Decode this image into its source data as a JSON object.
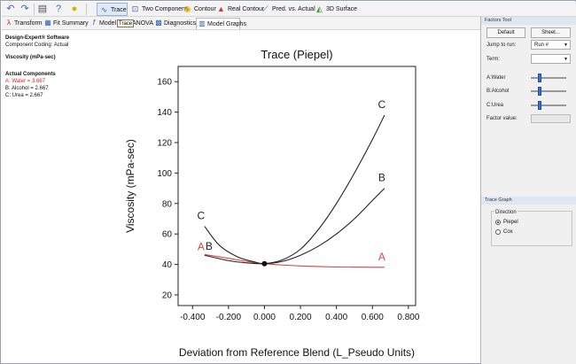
{
  "toolbar": {
    "undo_icon": "undo-icon",
    "redo_icon": "redo-icon",
    "print_icon": "print-icon",
    "help_icon": "help-icon",
    "tip_icon": "lightbulb-icon",
    "buttons": [
      {
        "label": "Trace",
        "icon": "trace-icon",
        "active": true
      },
      {
        "label": "Two Component",
        "icon": "two-component-icon"
      },
      {
        "label": "Contour",
        "icon": "contour-icon"
      },
      {
        "label": "Real Contour",
        "icon": "real-contour-icon"
      },
      {
        "label": "Pred. vs. Actual",
        "icon": "pred-vs-actual-icon"
      },
      {
        "label": "3D Surface",
        "icon": "surface-3d-icon"
      }
    ]
  },
  "tabs": [
    {
      "label": "Transform",
      "icon": "transform-icon"
    },
    {
      "label": "Fit Summary",
      "icon": "fit-summary-icon"
    },
    {
      "label": "Model",
      "icon": "model-icon"
    },
    {
      "label": "ANOVA",
      "icon": "anova-icon"
    },
    {
      "label": "Diagnostics",
      "icon": "diagnostics-icon"
    },
    {
      "label": "Model Graphs",
      "icon": "model-graphs-icon",
      "active": true
    }
  ],
  "tooltip": "Trace",
  "info": {
    "software": "Design-Expert® Software",
    "coding": "Component Coding: Actual",
    "response": "Viscosity (mPa-sec)",
    "components_title": "Actual Components",
    "components": [
      {
        "text": "A: Water = 3.667",
        "color": "#e02020"
      },
      {
        "text": "B: Alcohol = 2.667",
        "color": "#111111"
      },
      {
        "text": "C: Urea = 2.667",
        "color": "#111111"
      }
    ]
  },
  "factors_tool": {
    "header": "Factors Tool",
    "default_label": "Default",
    "sheet_label": "Sheet...",
    "jump_label": "Jump to run:",
    "jump_value": "Run #",
    "term_label": "Term:",
    "term_value": "",
    "factors": [
      {
        "label": "A:Water",
        "level": 0.22
      },
      {
        "label": "B:Alcohol",
        "level": 0.22
      },
      {
        "label": "C:Urea",
        "level": 0.22
      }
    ],
    "factor_value_label": "Factor value:"
  },
  "trace_graph": {
    "header": "Trace Graph",
    "direction_label": "Direction",
    "options": [
      {
        "label": "Piepel",
        "selected": true
      },
      {
        "label": "Cox",
        "selected": false
      }
    ]
  },
  "chart_data": {
    "type": "line",
    "title": "Trace (Piepel)",
    "xlabel": "Deviation from Reference Blend (L_Pseudo Units)",
    "ylabel": "Viscosity (mPa-sec)",
    "xlim": [
      -0.48,
      0.84
    ],
    "ylim": [
      13,
      170
    ],
    "xticks": [
      "-0.400",
      "-0.200",
      "0.000",
      "0.200",
      "0.400",
      "0.600",
      "0.800"
    ],
    "xtick_values": [
      -0.4,
      -0.2,
      0.0,
      0.2,
      0.4,
      0.6,
      0.8
    ],
    "yticks": [
      "20",
      "40",
      "60",
      "80",
      "100",
      "120",
      "140",
      "160"
    ],
    "ytick_values": [
      20,
      40,
      60,
      80,
      100,
      120,
      140,
      160
    ],
    "reference_point": {
      "x": 0.0,
      "y": 40.5
    },
    "series": [
      {
        "name": "A",
        "color": "#e34040",
        "x": [
          -0.333,
          -0.2,
          -0.1,
          0.0,
          0.1,
          0.2,
          0.3,
          0.4,
          0.5,
          0.6,
          0.667
        ],
        "y": [
          46.5,
          44.0,
          42.0,
          40.5,
          39.6,
          39.0,
          38.6,
          38.3,
          38.2,
          38.1,
          38.1
        ]
      },
      {
        "name": "B",
        "color": "#222222",
        "x": [
          -0.333,
          -0.2,
          -0.1,
          0.0,
          0.1,
          0.2,
          0.3,
          0.4,
          0.5,
          0.6,
          0.667
        ],
        "y": [
          46.0,
          42.5,
          41.0,
          40.5,
          42.0,
          46.0,
          52.0,
          60.0,
          70.0,
          82.0,
          90.0
        ]
      },
      {
        "name": "C",
        "color": "#222222",
        "x": [
          -0.333,
          -0.25,
          -0.15,
          -0.05,
          0.0,
          0.1,
          0.2,
          0.3,
          0.4,
          0.5,
          0.6,
          0.667
        ],
        "y": [
          65.0,
          52.5,
          45.0,
          41.5,
          40.5,
          43.0,
          50.0,
          63.0,
          80.0,
          100.0,
          122.0,
          138.0
        ]
      }
    ]
  }
}
